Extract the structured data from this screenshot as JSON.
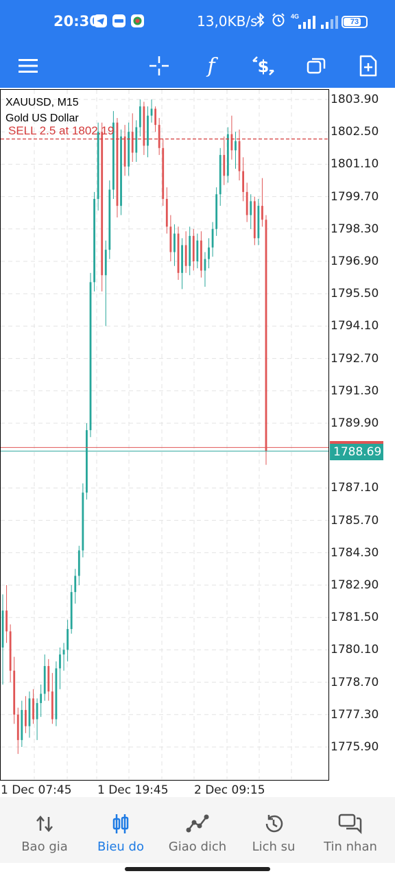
{
  "status_bar": {
    "time": "20:30",
    "app_icons": [
      "telegram-icon",
      "zalo-icon",
      "shield-app-icon"
    ],
    "speed": "13,0KB/s",
    "bluetooth": "bluetooth-icon",
    "alarm": "alarm-icon",
    "network": "4G",
    "battery": "73"
  },
  "toolbar": {
    "items": [
      "menu-icon",
      "crosshair-icon",
      "indicators-icon",
      "trade-icon",
      "timeframes-icon",
      "new-order-icon"
    ]
  },
  "chart": {
    "symbol_line": "XAUUSD, M15",
    "description": "Gold US Dollar",
    "order_line": "SELL 2.5 at 1802.19",
    "current_price": "1788.69",
    "colors": {
      "bull": "#26a69a",
      "bear": "#e05555",
      "order_line": "#d43a3a",
      "grid": "#e3e3e3"
    }
  },
  "chart_data": {
    "type": "candlestick",
    "symbol": "XAUUSD",
    "timeframe": "M15",
    "y_ticks": [
      "1803.90",
      "1802.50",
      "1801.10",
      "1799.70",
      "1798.30",
      "1796.90",
      "1795.50",
      "1794.10",
      "1792.70",
      "1791.30",
      "1789.90",
      "1787.10",
      "1785.70",
      "1784.30",
      "1782.90",
      "1781.50",
      "1780.10",
      "1778.70",
      "1777.30",
      "1775.90"
    ],
    "x_ticks": [
      "1 Dec 07:45",
      "1 Dec 19:45",
      "2 Dec 09:15"
    ],
    "ylim": [
      1775.0,
      1804.4
    ],
    "order_price": 1802.19,
    "bid": 1788.69,
    "ask": 1788.85,
    "grid": true,
    "candles": [
      [
        1780.2,
        1782.5,
        1778.6,
        1781.8
      ],
      [
        1781.8,
        1782.9,
        1780.4,
        1780.9
      ],
      [
        1780.9,
        1781.2,
        1778.7,
        1779.2
      ],
      [
        1779.2,
        1779.8,
        1776.9,
        1777.3
      ],
      [
        1777.3,
        1777.6,
        1775.6,
        1776.2
      ],
      [
        1776.2,
        1777.9,
        1775.9,
        1777.5
      ],
      [
        1777.5,
        1778.1,
        1776.5,
        1776.8
      ],
      [
        1776.8,
        1778.3,
        1776.3,
        1778.0
      ],
      [
        1778.0,
        1778.4,
        1776.9,
        1777.1
      ],
      [
        1777.1,
        1778.0,
        1776.2,
        1777.8
      ],
      [
        1777.8,
        1778.6,
        1777.2,
        1778.2
      ],
      [
        1778.2,
        1779.9,
        1777.9,
        1779.4
      ],
      [
        1779.4,
        1779.7,
        1777.9,
        1778.3
      ],
      [
        1778.3,
        1779.1,
        1776.9,
        1777.1
      ],
      [
        1777.1,
        1779.6,
        1776.8,
        1779.3
      ],
      [
        1779.3,
        1780.2,
        1778.4,
        1779.9
      ],
      [
        1779.9,
        1780.4,
        1779.2,
        1780.1
      ],
      [
        1780.1,
        1781.4,
        1779.6,
        1781.0
      ],
      [
        1781.0,
        1782.9,
        1780.8,
        1782.6
      ],
      [
        1782.6,
        1783.6,
        1782.1,
        1783.3
      ],
      [
        1783.3,
        1784.6,
        1782.9,
        1784.4
      ],
      [
        1784.4,
        1787.3,
        1784.1,
        1786.9
      ],
      [
        1786.9,
        1789.9,
        1786.6,
        1789.6
      ],
      [
        1789.6,
        1796.4,
        1789.3,
        1796.0
      ],
      [
        1796.0,
        1799.9,
        1795.6,
        1799.6
      ],
      [
        1799.6,
        1802.9,
        1799.1,
        1802.5
      ],
      [
        1802.5,
        1802.9,
        1795.6,
        1796.3
      ],
      [
        1796.3,
        1797.8,
        1794.1,
        1797.4
      ],
      [
        1797.4,
        1800.4,
        1797.0,
        1800.0
      ],
      [
        1800.0,
        1803.4,
        1799.6,
        1802.9
      ],
      [
        1802.9,
        1803.1,
        1798.8,
        1799.3
      ],
      [
        1799.3,
        1802.6,
        1798.9,
        1802.3
      ],
      [
        1802.3,
        1802.8,
        1800.6,
        1801.0
      ],
      [
        1801.0,
        1802.9,
        1800.6,
        1802.5
      ],
      [
        1802.5,
        1803.3,
        1801.2,
        1801.6
      ],
      [
        1801.6,
        1803.0,
        1801.2,
        1802.7
      ],
      [
        1802.7,
        1803.9,
        1802.3,
        1803.6
      ],
      [
        1803.6,
        1803.8,
        1801.5,
        1801.9
      ],
      [
        1801.9,
        1803.6,
        1801.4,
        1803.2
      ],
      [
        1803.2,
        1803.9,
        1802.9,
        1803.5
      ],
      [
        1803.5,
        1803.6,
        1802.5,
        1802.8
      ],
      [
        1802.8,
        1803.1,
        1801.5,
        1801.8
      ],
      [
        1801.8,
        1802.2,
        1799.3,
        1799.6
      ],
      [
        1799.6,
        1800.1,
        1798.1,
        1798.4
      ],
      [
        1798.4,
        1798.9,
        1796.9,
        1797.3
      ],
      [
        1797.3,
        1798.5,
        1796.7,
        1798.1
      ],
      [
        1798.1,
        1798.4,
        1796.1,
        1796.4
      ],
      [
        1796.4,
        1797.9,
        1795.7,
        1797.6
      ],
      [
        1797.6,
        1798.2,
        1796.4,
        1796.7
      ],
      [
        1796.7,
        1798.4,
        1796.3,
        1798.0
      ],
      [
        1798.0,
        1798.3,
        1796.5,
        1796.9
      ],
      [
        1796.9,
        1798.1,
        1796.6,
        1797.8
      ],
      [
        1797.8,
        1798.2,
        1796.2,
        1796.5
      ],
      [
        1796.5,
        1797.3,
        1795.8,
        1797.0
      ],
      [
        1797.0,
        1797.9,
        1796.6,
        1797.5
      ],
      [
        1797.5,
        1798.6,
        1797.1,
        1798.3
      ],
      [
        1798.3,
        1800.1,
        1798.0,
        1799.8
      ],
      [
        1799.8,
        1801.8,
        1799.3,
        1801.5
      ],
      [
        1801.5,
        1802.3,
        1800.2,
        1800.6
      ],
      [
        1800.6,
        1802.7,
        1800.3,
        1802.4
      ],
      [
        1802.4,
        1803.2,
        1801.3,
        1801.7
      ],
      [
        1801.7,
        1802.5,
        1800.9,
        1802.1
      ],
      [
        1802.1,
        1802.6,
        1800.4,
        1800.8
      ],
      [
        1800.8,
        1801.4,
        1799.5,
        1799.9
      ],
      [
        1799.9,
        1800.3,
        1798.6,
        1798.9
      ],
      [
        1798.9,
        1799.8,
        1798.3,
        1799.5
      ],
      [
        1799.5,
        1799.7,
        1797.6,
        1797.9
      ],
      [
        1797.9,
        1799.6,
        1797.6,
        1799.3
      ],
      [
        1799.3,
        1800.5,
        1798.4,
        1798.7
      ],
      [
        1798.7,
        1798.9,
        1788.1,
        1788.69
      ]
    ]
  },
  "bottom_nav": {
    "items": [
      {
        "label": "Bao gia",
        "icon": "quotes-icon"
      },
      {
        "label": "Bieu do",
        "icon": "chart-icon"
      },
      {
        "label": "Giao dich",
        "icon": "trade-icon"
      },
      {
        "label": "Lich su",
        "icon": "history-icon"
      },
      {
        "label": "Tin nhan",
        "icon": "messages-icon"
      }
    ],
    "active_index": 1,
    "active_color": "#1e7be4"
  }
}
